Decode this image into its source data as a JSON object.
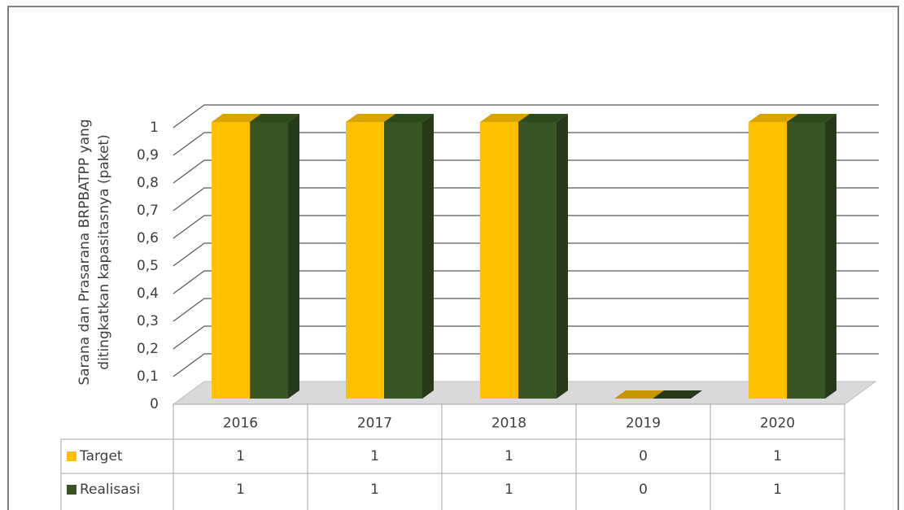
{
  "chart_data": {
    "type": "bar3d",
    "y_label": [
      "Sarana dan Prasarana BRPBATPP yang",
      "ditingkatkan kapasitasnya (paket)"
    ],
    "categories": [
      "2016",
      "2017",
      "2018",
      "2019",
      "2020"
    ],
    "series": [
      {
        "name": "Target",
        "color": "#ffc000",
        "values": [
          1,
          1,
          1,
          0,
          1
        ]
      },
      {
        "name": "Realisasi",
        "color": "#375623",
        "values": [
          1,
          1,
          1,
          0,
          1
        ]
      }
    ],
    "ylim": [
      0,
      1
    ],
    "yticks": [
      0,
      {
        "value": 0.1,
        "label": "0,1"
      },
      {
        "value": 0.2,
        "label": "0,2"
      },
      {
        "value": 0.3,
        "label": "0,3"
      },
      {
        "value": 0.4,
        "label": "0,4"
      },
      {
        "value": 0.5,
        "label": "0,5"
      },
      {
        "value": 0.6,
        "label": "0,6"
      },
      {
        "value": 0.7,
        "label": "0,7"
      },
      {
        "value": 0.8,
        "label": "0,8"
      },
      {
        "value": 0.9,
        "label": "0,9"
      },
      1
    ],
    "grid": true,
    "data_table": true
  }
}
